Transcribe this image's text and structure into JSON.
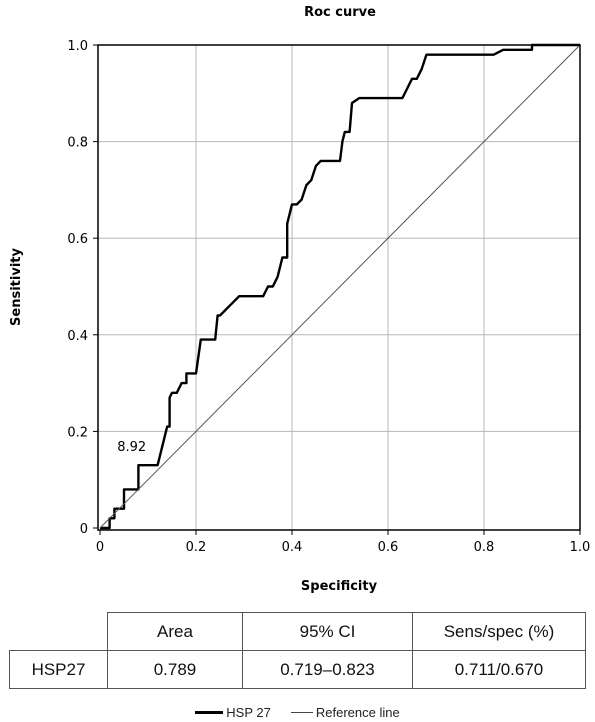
{
  "chart_data": {
    "type": "line",
    "title": "Roc curve",
    "xlabel": "Specificity",
    "ylabel": "Sensitivity",
    "xlim": [
      0,
      1.0
    ],
    "ylim": [
      0,
      1.0
    ],
    "x_ticks": [
      "0",
      "0.2",
      "0.4",
      "0.6",
      "0.8",
      "1.0"
    ],
    "y_ticks": [
      "0",
      "0.2",
      "0.4",
      "0.6",
      "0.8",
      "1.0"
    ],
    "grid": true,
    "legend_position": "bottom-center",
    "annotation": {
      "text": "8.92",
      "x": 0.04,
      "y": 0.17
    },
    "series": [
      {
        "name": "HSP 27",
        "color": "#000000",
        "points": [
          [
            0.0,
            0.0
          ],
          [
            0.02,
            0.0
          ],
          [
            0.02,
            0.02
          ],
          [
            0.03,
            0.02
          ],
          [
            0.03,
            0.04
          ],
          [
            0.05,
            0.04
          ],
          [
            0.05,
            0.08
          ],
          [
            0.08,
            0.08
          ],
          [
            0.08,
            0.13
          ],
          [
            0.12,
            0.13
          ],
          [
            0.14,
            0.21
          ],
          [
            0.145,
            0.21
          ],
          [
            0.145,
            0.27
          ],
          [
            0.15,
            0.28
          ],
          [
            0.16,
            0.28
          ],
          [
            0.17,
            0.3
          ],
          [
            0.18,
            0.3
          ],
          [
            0.18,
            0.32
          ],
          [
            0.2,
            0.32
          ],
          [
            0.21,
            0.39
          ],
          [
            0.24,
            0.39
          ],
          [
            0.245,
            0.44
          ],
          [
            0.25,
            0.44
          ],
          [
            0.26,
            0.45
          ],
          [
            0.27,
            0.46
          ],
          [
            0.29,
            0.48
          ],
          [
            0.34,
            0.48
          ],
          [
            0.35,
            0.5
          ],
          [
            0.36,
            0.5
          ],
          [
            0.37,
            0.52
          ],
          [
            0.38,
            0.56
          ],
          [
            0.39,
            0.56
          ],
          [
            0.39,
            0.63
          ],
          [
            0.4,
            0.67
          ],
          [
            0.41,
            0.67
          ],
          [
            0.42,
            0.68
          ],
          [
            0.43,
            0.71
          ],
          [
            0.44,
            0.72
          ],
          [
            0.45,
            0.75
          ],
          [
            0.46,
            0.76
          ],
          [
            0.5,
            0.76
          ],
          [
            0.505,
            0.8
          ],
          [
            0.51,
            0.82
          ],
          [
            0.52,
            0.82
          ],
          [
            0.525,
            0.88
          ],
          [
            0.54,
            0.89
          ],
          [
            0.55,
            0.89
          ],
          [
            0.63,
            0.89
          ],
          [
            0.64,
            0.91
          ],
          [
            0.65,
            0.93
          ],
          [
            0.66,
            0.93
          ],
          [
            0.67,
            0.95
          ],
          [
            0.68,
            0.98
          ],
          [
            0.82,
            0.98
          ],
          [
            0.84,
            0.99
          ],
          [
            0.9,
            0.99
          ],
          [
            0.9,
            1.0
          ],
          [
            1.0,
            1.0
          ]
        ]
      },
      {
        "name": "Reference line",
        "color": "#555555",
        "points": [
          [
            0.0,
            0.0
          ],
          [
            1.0,
            1.0
          ]
        ]
      }
    ]
  },
  "table": {
    "headers": [
      "",
      "Area",
      "95% CI",
      "Sens/spec (%)"
    ],
    "row": [
      "HSP27",
      "0.789",
      "0.719–0.823",
      "0.711/0.670"
    ]
  },
  "legend": {
    "items": [
      {
        "label": "HSP 27",
        "style": "thick"
      },
      {
        "label": "Reference line",
        "style": "thin"
      }
    ]
  }
}
